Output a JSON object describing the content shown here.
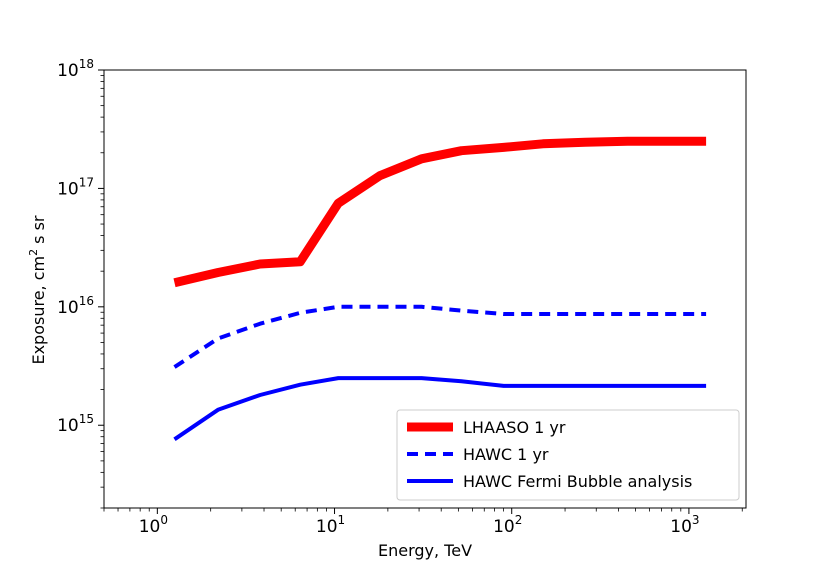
{
  "chart_data": {
    "type": "line",
    "title": "",
    "xlabel": "Energy, TeV",
    "ylabel_main": "Exposure, cm",
    "ylabel_sup": "2",
    "ylabel_tail": " s sr",
    "xscale": "log",
    "yscale": "log",
    "xlim": [
      0.5,
      2100
    ],
    "ylim": [
      200000000000000.0,
      1e+18
    ],
    "xticks": [
      {
        "base": "10",
        "exp": "0",
        "value": 1
      },
      {
        "base": "10",
        "exp": "1",
        "value": 10
      },
      {
        "base": "10",
        "exp": "2",
        "value": 100
      },
      {
        "base": "10",
        "exp": "3",
        "value": 1000
      }
    ],
    "yticks": [
      {
        "base": "10",
        "exp": "15",
        "value": 1000000000000000.0
      },
      {
        "base": "10",
        "exp": "16",
        "value": 1e+16
      },
      {
        "base": "10",
        "exp": "17",
        "value": 1e+17
      },
      {
        "base": "10",
        "exp": "18",
        "value": 1e+18
      }
    ],
    "legend_position": "lower-right",
    "series": [
      {
        "name": "LHAASO 1 yr",
        "color": "#ff0000",
        "style": "solid-thick",
        "x": [
          1.25,
          2.2,
          3.8,
          6.4,
          10.5,
          18,
          31,
          52,
          90,
          150,
          260,
          450,
          1250
        ],
        "y": [
          1.6e+16,
          1.95e+16,
          2.3e+16,
          2.4e+16,
          7.5e+16,
          1.28e+17,
          1.78e+17,
          2.08e+17,
          2.22e+17,
          2.38e+17,
          2.45e+17,
          2.5e+17,
          2.5e+17
        ]
      },
      {
        "name": "HAWC 1 yr",
        "color": "#0000ff",
        "style": "dashed",
        "x": [
          1.25,
          2.2,
          3.8,
          6.4,
          10.5,
          18,
          31,
          52,
          90,
          150,
          260,
          450,
          1250
        ],
        "y": [
          3100000000000000.0,
          5400000000000000.0,
          7200000000000000.0,
          8900000000000000.0,
          1e+16,
          1e+16,
          1e+16,
          9300000000000000.0,
          8700000000000000.0,
          8700000000000000.0,
          8700000000000000.0,
          8700000000000000.0,
          8700000000000000.0
        ]
      },
      {
        "name": "HAWC Fermi Bubble analysis",
        "color": "#0000ff",
        "style": "solid",
        "x": [
          1.25,
          2.2,
          3.8,
          6.4,
          10.5,
          18,
          31,
          52,
          90,
          150,
          260,
          450,
          1250
        ],
        "y": [
          760000000000000.0,
          1350000000000000.0,
          1800000000000000.0,
          2200000000000000.0,
          2500000000000000.0,
          2500000000000000.0,
          2500000000000000.0,
          2350000000000000.0,
          2150000000000000.0,
          2150000000000000.0,
          2150000000000000.0,
          2150000000000000.0,
          2150000000000000.0
        ]
      }
    ]
  }
}
